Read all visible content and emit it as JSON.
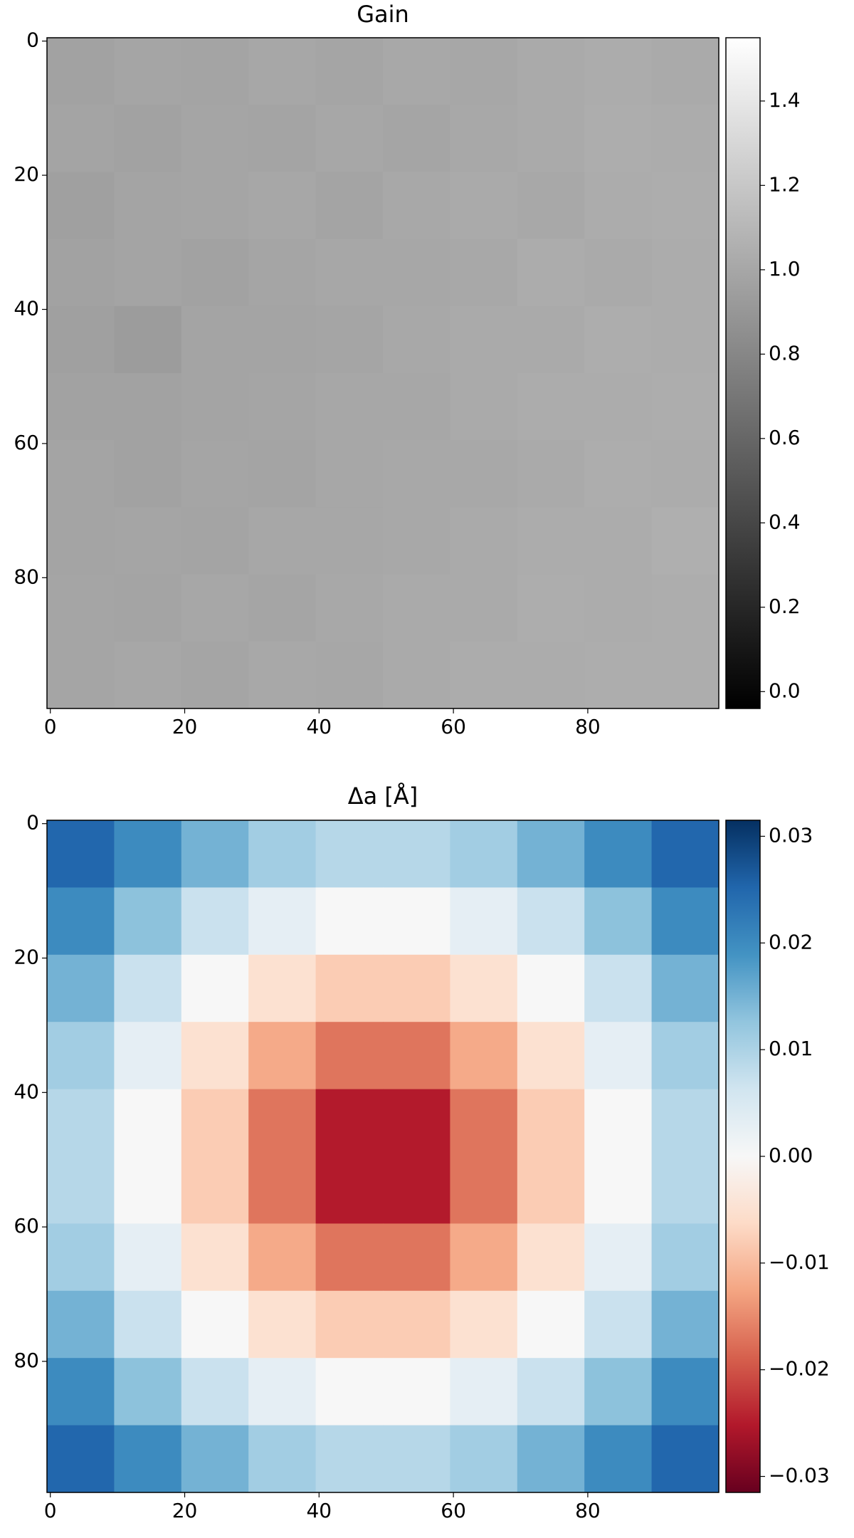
{
  "chart_data": [
    {
      "type": "heatmap",
      "title": "Gain",
      "colormap": "gray",
      "x": [
        4.5,
        14.5,
        24.5,
        34.5,
        44.5,
        54.5,
        64.5,
        74.5,
        84.5,
        94.5
      ],
      "y": [
        4.5,
        14.5,
        24.5,
        34.5,
        44.5,
        54.5,
        64.5,
        74.5,
        84.5,
        94.5
      ],
      "z": [
        [
          0.97,
          0.99,
          0.98,
          1.0,
          0.99,
          1.01,
          1.0,
          1.02,
          1.03,
          1.02
        ],
        [
          0.98,
          0.97,
          0.99,
          0.98,
          1.0,
          0.99,
          1.01,
          1.02,
          1.04,
          1.03
        ],
        [
          0.96,
          0.98,
          0.99,
          1.0,
          0.98,
          1.01,
          1.02,
          1.01,
          1.03,
          1.04
        ],
        [
          0.97,
          0.98,
          0.97,
          0.99,
          1.0,
          1.0,
          1.01,
          1.03,
          1.02,
          1.03
        ],
        [
          0.96,
          0.93,
          0.98,
          0.98,
          0.99,
          1.01,
          1.02,
          1.02,
          1.04,
          1.03
        ],
        [
          0.97,
          0.97,
          0.98,
          0.99,
          1.0,
          1.0,
          1.02,
          1.03,
          1.03,
          1.04
        ],
        [
          0.98,
          0.97,
          0.99,
          0.98,
          1.0,
          1.01,
          1.01,
          1.02,
          1.04,
          1.03
        ],
        [
          0.98,
          0.99,
          0.98,
          1.0,
          1.0,
          1.01,
          1.02,
          1.03,
          1.03,
          1.05
        ],
        [
          0.99,
          0.98,
          1.0,
          0.99,
          1.01,
          1.02,
          1.02,
          1.04,
          1.03,
          1.04
        ],
        [
          0.99,
          1.0,
          0.99,
          1.01,
          1.0,
          1.02,
          1.03,
          1.03,
          1.04,
          1.04
        ]
      ],
      "xlim": [
        -0.5,
        99.5
      ],
      "ylim": [
        99.5,
        -0.5
      ],
      "xticks": [
        0,
        20,
        40,
        60,
        80
      ],
      "yticks": [
        0,
        20,
        40,
        60,
        80
      ],
      "clim": [
        -0.04,
        1.55
      ],
      "cticks": [
        {
          "value": 0,
          "label": "0.0"
        },
        {
          "value": 0.2,
          "label": "0.2"
        },
        {
          "value": 0.4,
          "label": "0.4"
        },
        {
          "value": 0.6,
          "label": "0.6"
        },
        {
          "value": 0.8,
          "label": "0.8"
        },
        {
          "value": 1.0,
          "label": "1.0"
        },
        {
          "value": 1.2,
          "label": "1.2"
        },
        {
          "value": 1.4,
          "label": "1.4"
        }
      ]
    },
    {
      "type": "heatmap",
      "title": "Δa [Å]",
      "colormap": "RdBu",
      "x": [
        4.5,
        14.5,
        24.5,
        34.5,
        44.5,
        54.5,
        64.5,
        74.5,
        84.5,
        94.5
      ],
      "y": [
        4.5,
        14.5,
        24.5,
        34.5,
        44.5,
        54.5,
        64.5,
        74.5,
        84.5,
        94.5
      ],
      "z": [
        [
          0.025,
          0.02,
          0.015,
          0.011,
          0.009,
          0.009,
          0.011,
          0.015,
          0.02,
          0.025
        ],
        [
          0.02,
          0.013,
          0.007,
          0.003,
          0.0,
          0.0,
          0.003,
          0.007,
          0.013,
          0.02
        ],
        [
          0.015,
          0.007,
          0.0,
          -0.005,
          -0.008,
          -0.008,
          -0.005,
          0.0,
          0.007,
          0.015
        ],
        [
          0.011,
          0.003,
          -0.005,
          -0.012,
          -0.017,
          -0.017,
          -0.012,
          -0.005,
          0.003,
          0.011
        ],
        [
          0.009,
          0.0,
          -0.008,
          -0.017,
          -0.025,
          -0.025,
          -0.017,
          -0.008,
          0.0,
          0.009
        ],
        [
          0.009,
          0.0,
          -0.008,
          -0.017,
          -0.025,
          -0.025,
          -0.017,
          -0.008,
          0.0,
          0.009
        ],
        [
          0.011,
          0.003,
          -0.005,
          -0.012,
          -0.017,
          -0.017,
          -0.012,
          -0.005,
          0.003,
          0.011
        ],
        [
          0.015,
          0.007,
          0.0,
          -0.005,
          -0.008,
          -0.008,
          -0.005,
          0.0,
          0.007,
          0.015
        ],
        [
          0.02,
          0.013,
          0.007,
          0.003,
          0.0,
          0.0,
          0.003,
          0.007,
          0.013,
          0.02
        ],
        [
          0.025,
          0.02,
          0.015,
          0.011,
          0.009,
          0.009,
          0.011,
          0.015,
          0.02,
          0.025
        ]
      ],
      "xlim": [
        -0.5,
        99.5
      ],
      "ylim": [
        99.5,
        -0.5
      ],
      "xticks": [
        0,
        20,
        40,
        60,
        80
      ],
      "yticks": [
        0,
        20,
        40,
        60,
        80
      ],
      "clim": [
        -0.0315,
        0.0315
      ],
      "cticks": [
        {
          "value": -0.03,
          "label": "−0.03"
        },
        {
          "value": -0.02,
          "label": "−0.02"
        },
        {
          "value": -0.01,
          "label": "−0.01"
        },
        {
          "value": 0,
          "label": "0.00"
        },
        {
          "value": 0.01,
          "label": "0.01"
        },
        {
          "value": 0.02,
          "label": "0.02"
        },
        {
          "value": 0.03,
          "label": "0.03"
        }
      ]
    }
  ]
}
